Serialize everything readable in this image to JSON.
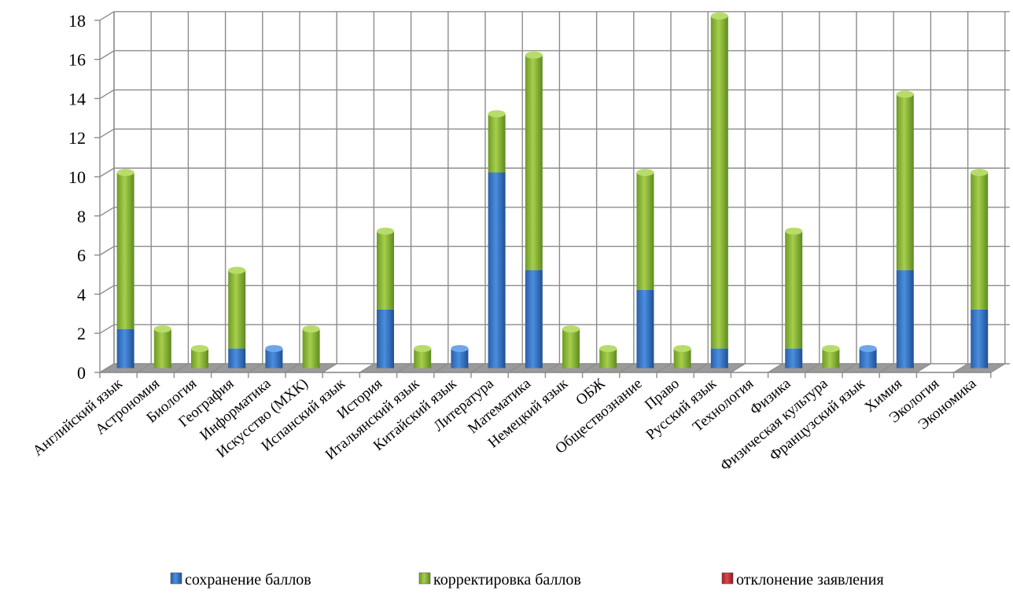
{
  "chart_data": {
    "type": "bar",
    "stacked": true,
    "categories": [
      "Английский язык",
      "Астрономия",
      "Биология",
      "География",
      "Информатика",
      "Искусство (МХК)",
      "Испанский язык",
      "История",
      "Итальянский язык",
      "Китайский язык",
      "Литература",
      "Математика",
      "Немецкий язык",
      "ОБЖ",
      "Обществознание",
      "Право",
      "Русский язык",
      "Технология",
      "Физика",
      "Физическая культура",
      "Французский язык",
      "Химия",
      "Экология",
      "Экономика"
    ],
    "series": [
      {
        "name": "сохранение баллов",
        "color": "#3a78c8",
        "values": [
          2,
          0,
          0,
          1,
          1,
          0,
          0,
          3,
          0,
          1,
          10,
          5,
          0,
          0,
          4,
          0,
          1,
          0,
          1,
          0,
          1,
          5,
          0,
          3
        ]
      },
      {
        "name": "корректировка баллов",
        "color": "#8db83a",
        "values": [
          8,
          2,
          1,
          4,
          0,
          2,
          0,
          4,
          1,
          0,
          3,
          11,
          2,
          1,
          6,
          1,
          17,
          0,
          6,
          1,
          0,
          9,
          0,
          7
        ]
      },
      {
        "name": "отклонение заявления",
        "color": "#c8323a",
        "values": [
          0,
          0,
          0,
          0,
          0,
          0,
          0,
          0,
          0,
          0,
          0,
          0,
          0,
          0,
          0,
          0,
          0,
          0,
          0,
          0,
          0,
          0,
          0,
          0
        ]
      }
    ],
    "ylim": [
      0,
      18
    ],
    "yticks": [
      0,
      2,
      4,
      6,
      8,
      10,
      12,
      14,
      16,
      18
    ],
    "grid": true,
    "legend_position": "bottom"
  }
}
